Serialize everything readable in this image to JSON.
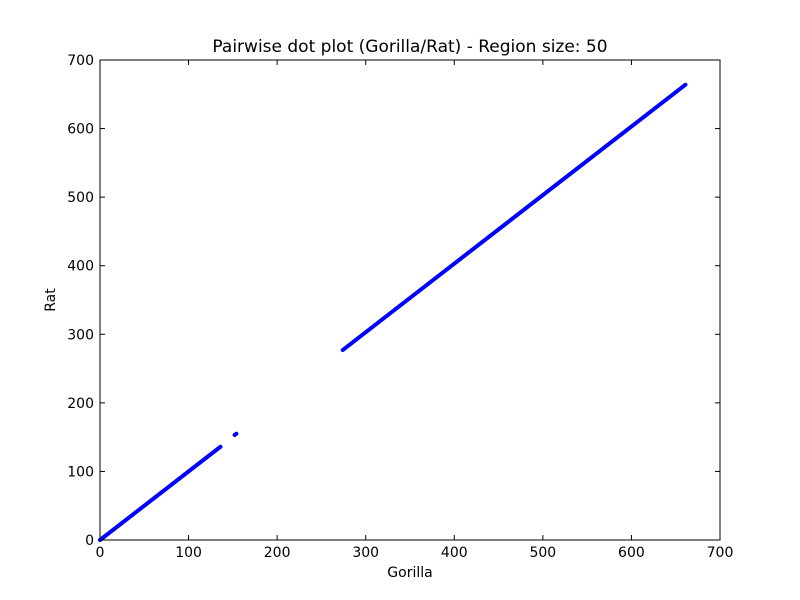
{
  "chart_data": {
    "type": "scatter",
    "title": "Pairwise dot plot (Gorilla/Rat) - Region size: 50",
    "xlabel": "Gorilla",
    "ylabel": "Rat",
    "xlim": [
      0,
      700
    ],
    "ylim": [
      0,
      700
    ],
    "xticks": [
      0,
      100,
      200,
      300,
      400,
      500,
      600,
      700
    ],
    "yticks": [
      0,
      100,
      200,
      300,
      400,
      500,
      600,
      700
    ],
    "grid": false,
    "legend": "none",
    "series": [
      {
        "color": "#0000ff",
        "segments": [
          {
            "x": [
              0,
              136
            ],
            "y": [
              0,
              136
            ]
          },
          {
            "x": [
              152,
              154
            ],
            "y": [
              153,
              155
            ]
          },
          {
            "x": [
              274,
              661
            ],
            "y": [
              277,
              664
            ]
          }
        ]
      }
    ]
  }
}
